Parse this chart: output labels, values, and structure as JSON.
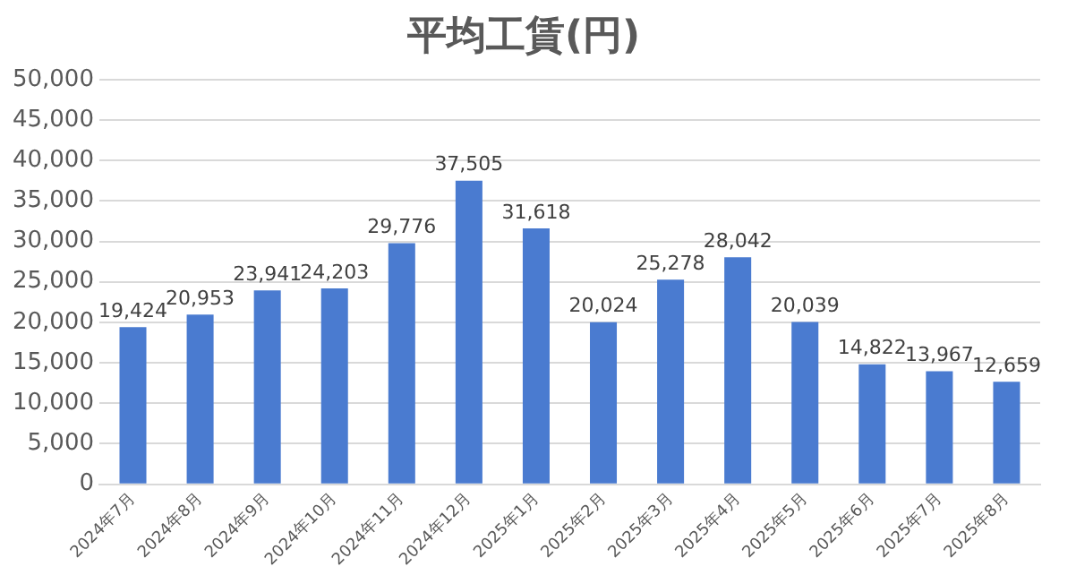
{
  "chart_data": {
    "type": "bar",
    "title": "平均工賃(円)",
    "categories": [
      "2024年7月",
      "2024年8月",
      "2024年9月",
      "2024年10月",
      "2024年11月",
      "2024年12月",
      "2025年1月",
      "2025年2月",
      "2025年3月",
      "2025年4月",
      "2025年5月",
      "2025年6月",
      "2025年7月",
      "2025年8月"
    ],
    "values": [
      19424,
      20953,
      23941,
      24203,
      29776,
      37505,
      31618,
      20024,
      25278,
      28042,
      20039,
      14822,
      13967,
      12659
    ],
    "value_labels": [
      "19,424",
      "20,953",
      "23,941",
      "24,203",
      "29,776",
      "37,505",
      "31,618",
      "20,024",
      "25,278",
      "28,042",
      "20,039",
      "14,822",
      "13,967",
      "12,659"
    ],
    "color": "#4a7bd0",
    "ylim": [
      0,
      50000
    ],
    "yticks": [
      {
        "value": 0,
        "label": "0"
      },
      {
        "value": 5000,
        "label": "5,000"
      },
      {
        "value": 10000,
        "label": "10,000"
      },
      {
        "value": 15000,
        "label": "15,000"
      },
      {
        "value": 20000,
        "label": "20,000"
      },
      {
        "value": 25000,
        "label": "25,000"
      },
      {
        "value": 30000,
        "label": "30,000"
      },
      {
        "value": 35000,
        "label": "35,000"
      },
      {
        "value": 40000,
        "label": "40,000"
      },
      {
        "value": 45000,
        "label": "45,000"
      },
      {
        "value": 50000,
        "label": "50,000"
      }
    ],
    "grid": "y"
  }
}
